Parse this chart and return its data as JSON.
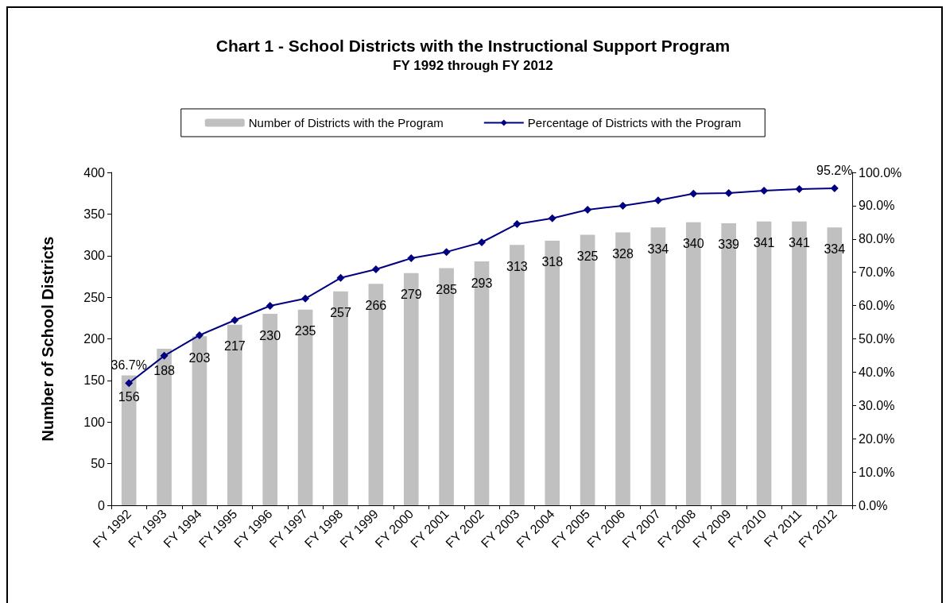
{
  "chart_data": {
    "type": "bar",
    "title": "Chart 1 - School Districts with the Instructional Support Program",
    "subtitle": "FY 1992 through FY 2012",
    "ylabel": "Number of School Districts",
    "categories": [
      "FY 1992",
      "FY 1993",
      "FY 1994",
      "FY 1995",
      "FY 1996",
      "FY 1997",
      "FY 1998",
      "FY 1999",
      "FY 2000",
      "FY 2001",
      "FY 2002",
      "FY 2003",
      "FY 2004",
      "FY 2005",
      "FY 2006",
      "FY 2007",
      "FY 2008",
      "FY 2009",
      "FY 2010",
      "FY 2011",
      "FY 2012"
    ],
    "series": [
      {
        "name": "Number of Districts with the Program",
        "color": "#c0c0c0",
        "values": [
          156,
          188,
          203,
          217,
          230,
          235,
          257,
          266,
          279,
          285,
          293,
          313,
          318,
          325,
          328,
          334,
          340,
          339,
          341,
          341,
          334
        ],
        "value_labels": [
          "156",
          "188",
          "203",
          "217",
          "230",
          "235",
          "257",
          "266",
          "279",
          "285",
          "293",
          "313",
          "318",
          "325",
          "328",
          "334",
          "340",
          "339",
          "341",
          "341",
          "334"
        ]
      },
      {
        "name": "Percentage of Districts with the Program",
        "type": "line",
        "axis": "y2",
        "color": "#000080",
        "marker": "diamond",
        "values": [
          36.7,
          44.9,
          51.1,
          55.6,
          59.9,
          62.1,
          68.3,
          70.9,
          74.2,
          76.1,
          79.0,
          84.5,
          86.2,
          88.8,
          90.0,
          91.6,
          93.6,
          93.8,
          94.5,
          95.0,
          95.2
        ],
        "value_labels": [
          "36.7%",
          null,
          null,
          null,
          null,
          null,
          null,
          null,
          null,
          null,
          null,
          null,
          null,
          null,
          null,
          null,
          null,
          null,
          null,
          null,
          "95.2%"
        ]
      }
    ],
    "ylim": [
      0,
      400
    ],
    "yticks": [
      0,
      50,
      100,
      150,
      200,
      250,
      300,
      350,
      400
    ],
    "y2lim": [
      0,
      100
    ],
    "y2ticks": [
      {
        "value": 0,
        "label": "0.0%"
      },
      {
        "value": 10,
        "label": "10.0%"
      },
      {
        "value": 20,
        "label": "20.0%"
      },
      {
        "value": 30,
        "label": "30.0%"
      },
      {
        "value": 40,
        "label": "40.0%"
      },
      {
        "value": 50,
        "label": "50.0%"
      },
      {
        "value": 60,
        "label": "60.0%"
      },
      {
        "value": 70,
        "label": "70.0%"
      },
      {
        "value": 80,
        "label": "80.0%"
      },
      {
        "value": 90,
        "label": "90.0%"
      },
      {
        "value": 100,
        "label": "100.0%"
      }
    ],
    "grid": false,
    "legend": "top"
  }
}
